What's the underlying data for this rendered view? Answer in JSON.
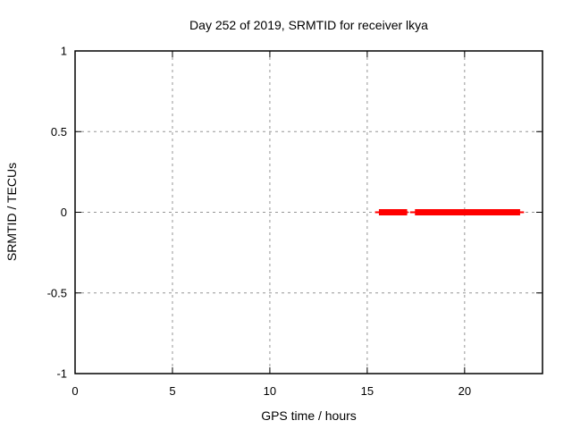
{
  "chart_data": {
    "type": "line",
    "title": "Day 252 of 2019, SRMTID for receiver lkya",
    "xlabel": "GPS time / hours",
    "ylabel": "SRMTID / TECUs",
    "xlim": [
      0,
      24
    ],
    "ylim": [
      -1,
      1
    ],
    "xticks": [
      0,
      5,
      10,
      15,
      20
    ],
    "xtick_labels": [
      "0",
      "5",
      "10",
      "15",
      "20"
    ],
    "yticks": [
      1,
      0.5,
      0,
      -0.5,
      -1
    ],
    "ytick_labels": [
      "1",
      "0.5",
      "0",
      "-0.5",
      "-1"
    ],
    "grid": true,
    "legend": false,
    "series": [
      {
        "name": "SRMTID",
        "color": "#ff0000",
        "style": "thick horizontal segments at y=0 with thin leaders",
        "segments": [
          {
            "y": 0,
            "x_start": 15.4,
            "x_end": 17.1,
            "x_core_start": 15.6,
            "x_core_end": 17.05
          },
          {
            "y": 0,
            "x_start": 17.2,
            "x_end": 23.05,
            "x_core_start": 17.45,
            "x_core_end": 22.85
          }
        ]
      }
    ],
    "colors": {
      "data": "#ff0000",
      "grid": "#959595",
      "axis": "#000000",
      "background": "#ffffff"
    }
  }
}
